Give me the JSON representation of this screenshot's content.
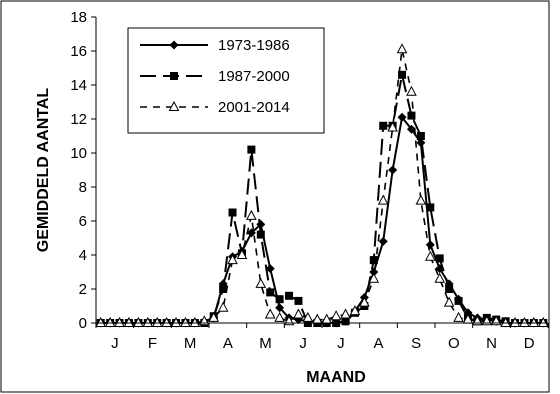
{
  "chart_data": {
    "type": "line",
    "title": "",
    "xlabel": "MAAND",
    "ylabel": "GEMIDDELD AANTAL",
    "ylim": [
      0,
      18
    ],
    "yticks": [
      0,
      2,
      4,
      6,
      8,
      10,
      12,
      14,
      16,
      18
    ],
    "month_labels": [
      "J",
      "F",
      "M",
      "A",
      "M",
      "J",
      "J",
      "A",
      "S",
      "O",
      "N",
      "D"
    ],
    "points_per_month": 4,
    "grid": false,
    "legend_position": "top-left",
    "series": [
      {
        "name": "1973-1986",
        "style": "solid",
        "marker": "diamond",
        "values": [
          0,
          0,
          0,
          0,
          0,
          0,
          0,
          0,
          0,
          0,
          0,
          0.1,
          0.3,
          2.3,
          3.9,
          4.2,
          5.3,
          5.8,
          3.2,
          0.9,
          0.3,
          0.2,
          0.1,
          0.1,
          0,
          0,
          0.1,
          0.7,
          1.5,
          3,
          4.8,
          9,
          12.1,
          11.4,
          10.6,
          4.6,
          3.2,
          2.3,
          1.4,
          0.6,
          0.3,
          0.2,
          0.1,
          0,
          0,
          0,
          0,
          0
        ]
      },
      {
        "name": "1987-2000",
        "style": "long-dash",
        "marker": "square",
        "values": [
          0,
          0,
          0,
          0,
          0,
          0,
          0,
          0,
          0,
          0,
          0,
          0,
          0.4,
          2,
          6.5,
          4.1,
          10.2,
          5.2,
          1.8,
          1.4,
          1.6,
          1.3,
          0,
          0,
          0,
          0,
          0.1,
          0.6,
          1,
          3.7,
          11.6,
          11.6,
          14.6,
          12.2,
          11,
          6.8,
          3.8,
          2,
          1.3,
          0.3,
          0.1,
          0.3,
          0.2,
          0.1,
          0,
          0,
          0,
          0
        ]
      },
      {
        "name": "2001-2014",
        "style": "short-dash",
        "marker": "triangle",
        "values": [
          0,
          0,
          0,
          0,
          0,
          0,
          0,
          0,
          0,
          0,
          0,
          0.1,
          0.3,
          0.9,
          3.7,
          4,
          6.3,
          2.3,
          0.5,
          0.3,
          0.1,
          0.5,
          0.3,
          0.2,
          0.2,
          0.4,
          0.5,
          0.7,
          1.2,
          2.6,
          7.2,
          11.5,
          16.1,
          13.6,
          7.2,
          3.9,
          2.6,
          1.2,
          0.3,
          0.2,
          0.1,
          0.1,
          0.1,
          0,
          0,
          0,
          0,
          0
        ]
      }
    ]
  }
}
